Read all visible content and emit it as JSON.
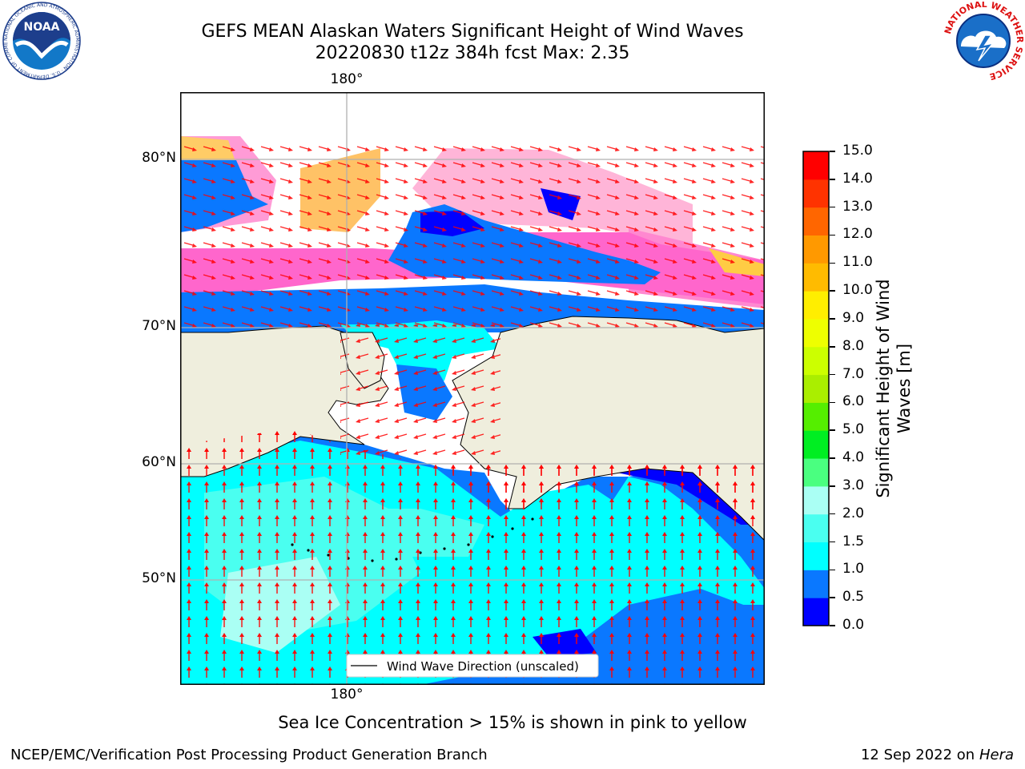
{
  "header": {
    "title_line1": "GEFS MEAN Alaskan Waters Significant Height of Wind Waves",
    "title_line2": "20220830 t12z 384h fcst   Max: 2.35"
  },
  "logos": {
    "left": {
      "name": "noaa-logo",
      "text": "NOAA",
      "ring": "NATIONAL OCEANIC AND ATMOSPHERIC ADMINISTRATION · U.S. DEPARTMENT OF COMMERCE"
    },
    "right": {
      "name": "nws-logo",
      "ring": "NATIONAL WEATHER SERVICE"
    }
  },
  "map": {
    "lon_label_top": "180°",
    "lon_label_bottom": "180°",
    "lat_labels": [
      {
        "text": "80°N",
        "lat": 80
      },
      {
        "text": "70°N",
        "lat": 70
      },
      {
        "text": "60°N",
        "lat": 60
      },
      {
        "text": "50°N",
        "lat": 50
      }
    ],
    "legend_label": "Wind Wave Direction (unscaled)",
    "colors": {
      "land": "#efeedd",
      "grid": "#b0b0b0",
      "arrow": "#ff0000",
      "ice": "#ff66cc",
      "ice_edge": "#ffcc44"
    }
  },
  "colorbar": {
    "label": "Significant Height of Wind Waves [m]",
    "ticks": [
      "0.0",
      "0.5",
      "1.0",
      "1.5",
      "2.0",
      "3.0",
      "4.0",
      "5.0",
      "6.0",
      "7.0",
      "8.0",
      "9.0",
      "10.0",
      "11.0",
      "12.0",
      "13.0",
      "14.0",
      "15.0"
    ],
    "colors": [
      "#0000ff",
      "#0a78ff",
      "#00ffff",
      "#4afff0",
      "#aafff4",
      "#4aff80",
      "#00ee22",
      "#55ee00",
      "#aaee00",
      "#ccff00",
      "#eeff00",
      "#ffee00",
      "#ffbb00",
      "#ff9900",
      "#ff6600",
      "#ff3300",
      "#ff0000"
    ]
  },
  "caption": "Sea Ice Concentration > 15% is shown in pink to yellow",
  "footer": {
    "left": "NCEP/EMC/Verification Post Processing Product Generation Branch",
    "date": "12 Sep 2022 on",
    "machine": "Hera"
  }
}
